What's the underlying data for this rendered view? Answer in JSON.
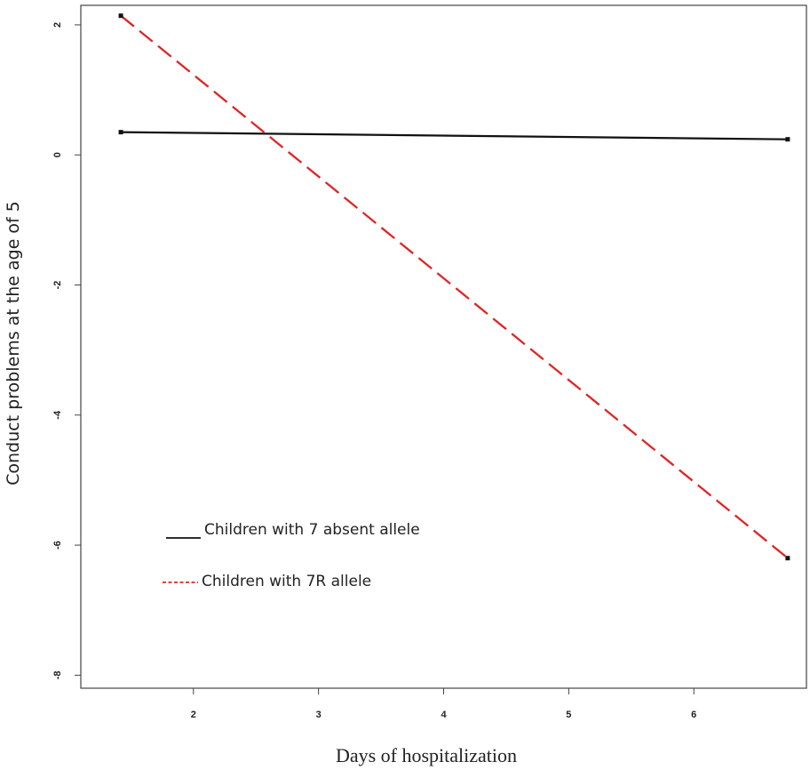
{
  "chart_data": {
    "type": "line",
    "title": "",
    "xlabel": "Days of hospitalization",
    "ylabel": "Conduct problems  at the age of 5",
    "xlim": [
      1.1,
      6.9
    ],
    "ylim": [
      -8.2,
      2.3
    ],
    "x_ticks": [
      2,
      3,
      4,
      5,
      6
    ],
    "y_ticks": [
      2,
      0,
      -2,
      -4,
      -6,
      -8
    ],
    "grid": false,
    "legend_position": "bottom-left",
    "series": [
      {
        "name": "Children with 7 absent allele",
        "x": [
          1.42,
          6.75
        ],
        "y": [
          0.35,
          0.24
        ],
        "color": "#111111",
        "style": "solid"
      },
      {
        "name": "Children with 7R allele",
        "x": [
          1.42,
          6.75
        ],
        "y": [
          2.14,
          -6.2
        ],
        "color": "#e02424",
        "style": "dashed"
      }
    ]
  }
}
